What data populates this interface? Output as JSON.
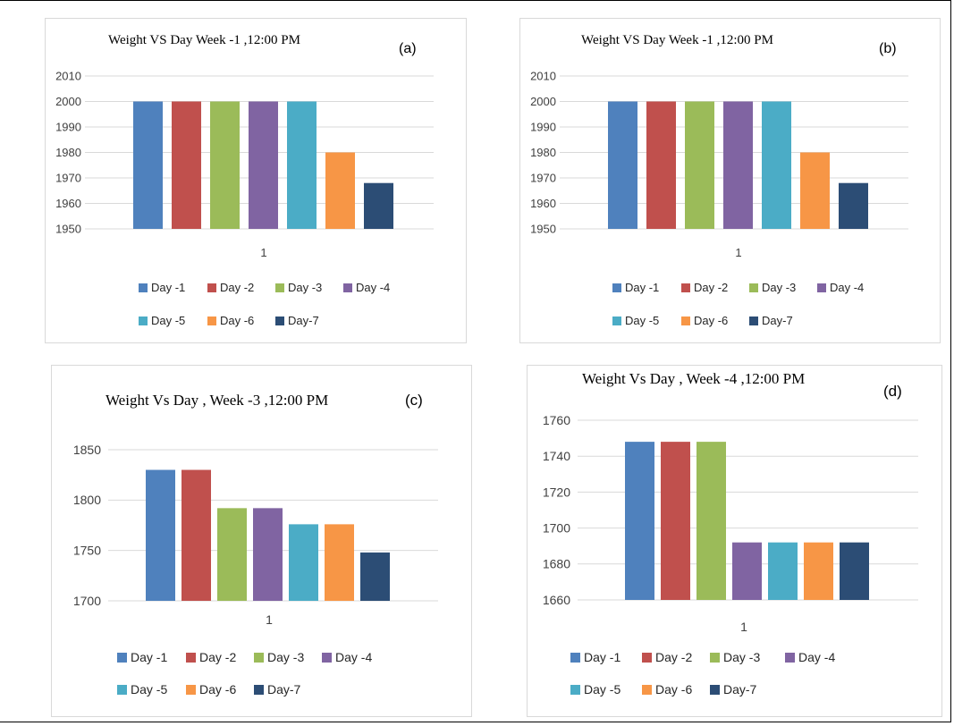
{
  "colors": {
    "day1": "#4f81bd",
    "day2": "#c0504d",
    "day3": "#9bbb59",
    "day4": "#8064a2",
    "day5": "#4bacc6",
    "day6": "#f79646",
    "day7": "#2c4d75",
    "grid": "#d9d9d9",
    "tick_text": "#404040"
  },
  "chart_data": [
    {
      "panel": "(a)",
      "type": "bar",
      "title": "Weight VS Day Week -1 ,12:00 PM",
      "categories": [
        "1"
      ],
      "ylim": [
        1950,
        2010
      ],
      "yticks": [
        1950,
        1960,
        1970,
        1980,
        1990,
        2000,
        2010
      ],
      "grid": true,
      "legend_position": "bottom",
      "legend_rows": [
        [
          "Day -1",
          "Day -2",
          "Day -3",
          "Day -4"
        ],
        [
          "Day -5",
          "Day -6",
          "Day-7"
        ]
      ],
      "series": [
        {
          "name": "Day -1",
          "values": [
            2000
          ]
        },
        {
          "name": "Day -2",
          "values": [
            2000
          ]
        },
        {
          "name": "Day -3",
          "values": [
            2000
          ]
        },
        {
          "name": "Day -4",
          "values": [
            2000
          ]
        },
        {
          "name": "Day -5",
          "values": [
            2000
          ]
        },
        {
          "name": "Day -6",
          "values": [
            1980
          ]
        },
        {
          "name": "Day-7",
          "values": [
            1968
          ]
        }
      ]
    },
    {
      "panel": "(b)",
      "type": "bar",
      "title": "Weight VS Day Week -1 ,12:00 PM",
      "categories": [
        "1"
      ],
      "ylim": [
        1950,
        2010
      ],
      "yticks": [
        1950,
        1960,
        1970,
        1980,
        1990,
        2000,
        2010
      ],
      "grid": true,
      "legend_position": "bottom",
      "legend_rows": [
        [
          "Day -1",
          "Day -2",
          "Day -3",
          "Day -4"
        ],
        [
          "Day -5",
          "Day -6",
          "Day-7"
        ]
      ],
      "series": [
        {
          "name": "Day -1",
          "values": [
            2000
          ]
        },
        {
          "name": "Day -2",
          "values": [
            2000
          ]
        },
        {
          "name": "Day -3",
          "values": [
            2000
          ]
        },
        {
          "name": "Day -4",
          "values": [
            2000
          ]
        },
        {
          "name": "Day -5",
          "values": [
            2000
          ]
        },
        {
          "name": "Day -6",
          "values": [
            1980
          ]
        },
        {
          "name": "Day-7",
          "values": [
            1968
          ]
        }
      ]
    },
    {
      "panel": "(c)",
      "type": "bar",
      "title": "Weight Vs Day , Week -3 ,12:00 PM",
      "categories": [
        "1"
      ],
      "ylim": [
        1700,
        1850
      ],
      "yticks": [
        1700,
        1750,
        1800,
        1850
      ],
      "grid": true,
      "legend_position": "bottom",
      "legend_rows": [
        [
          "Day -1",
          "Day -2",
          "Day -3",
          "Day -4"
        ],
        [
          "Day -5",
          "Day -6",
          "Day-7"
        ]
      ],
      "series": [
        {
          "name": "Day -1",
          "values": [
            1830
          ]
        },
        {
          "name": "Day -2",
          "values": [
            1830
          ]
        },
        {
          "name": "Day -3",
          "values": [
            1792
          ]
        },
        {
          "name": "Day -4",
          "values": [
            1792
          ]
        },
        {
          "name": "Day -5",
          "values": [
            1776
          ]
        },
        {
          "name": "Day -6",
          "values": [
            1776
          ]
        },
        {
          "name": "Day-7",
          "values": [
            1748
          ]
        }
      ]
    },
    {
      "panel": "(d)",
      "type": "bar",
      "title": "Weight Vs Day , Week -4 ,12:00 PM",
      "categories": [
        "1"
      ],
      "ylim": [
        1660,
        1760
      ],
      "yticks": [
        1660,
        1680,
        1700,
        1720,
        1740,
        1760
      ],
      "grid": true,
      "legend_position": "bottom",
      "legend_rows": [
        [
          "Day -1",
          "Day -2",
          "Day -3",
          "Day -4"
        ],
        [
          "Day -5",
          "Day -6",
          "Day-7"
        ]
      ],
      "series": [
        {
          "name": "Day -1",
          "values": [
            1748
          ]
        },
        {
          "name": "Day -2",
          "values": [
            1748
          ]
        },
        {
          "name": "Day -3",
          "values": [
            1748
          ]
        },
        {
          "name": "Day -4",
          "values": [
            1692
          ]
        },
        {
          "name": "Day -5",
          "values": [
            1692
          ]
        },
        {
          "name": "Day -6",
          "values": [
            1692
          ]
        },
        {
          "name": "Day-7",
          "values": [
            1692
          ]
        }
      ]
    }
  ]
}
